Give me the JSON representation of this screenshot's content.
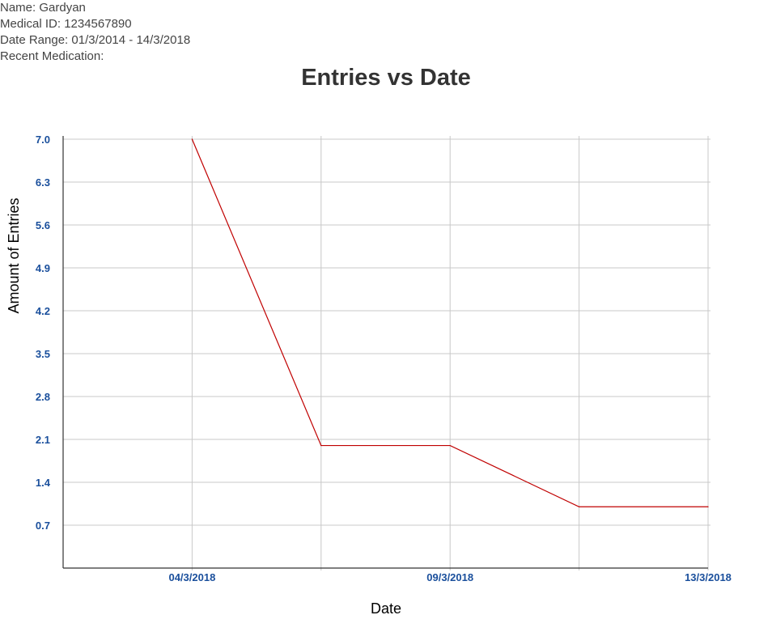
{
  "patient": {
    "name_line": "Name: Gardyan",
    "id_line": "Medical ID: 1234567890",
    "range_line": "Date Range: 01/3/2014 - 14/3/2018",
    "medication_line": "Recent Medication:"
  },
  "chart_data": {
    "type": "line",
    "title": "Entries vs Date",
    "xlabel": "Date",
    "ylabel": "Amount of Entries",
    "x_tick_labels": [
      "04/3/2018",
      "09/3/2018",
      "13/3/2018"
    ],
    "y_tick_labels": [
      "0.7",
      "1.4",
      "2.1",
      "2.8",
      "3.5",
      "4.2",
      "4.9",
      "5.6",
      "6.3",
      "7.0"
    ],
    "ylim": [
      0,
      7.0
    ],
    "grid": true,
    "series": [
      {
        "color": "#c00000",
        "points": [
          {
            "x": 1,
            "y": 7.0
          },
          {
            "x": 2,
            "y": 2.0
          },
          {
            "x": 3,
            "y": 2.0
          },
          {
            "x": 4,
            "y": 1.0
          },
          {
            "x": 5,
            "y": 1.0
          }
        ]
      }
    ],
    "grid_color": "#c8c8c8",
    "tick_color": "#1a4f9c",
    "axis_color": "#333333"
  }
}
